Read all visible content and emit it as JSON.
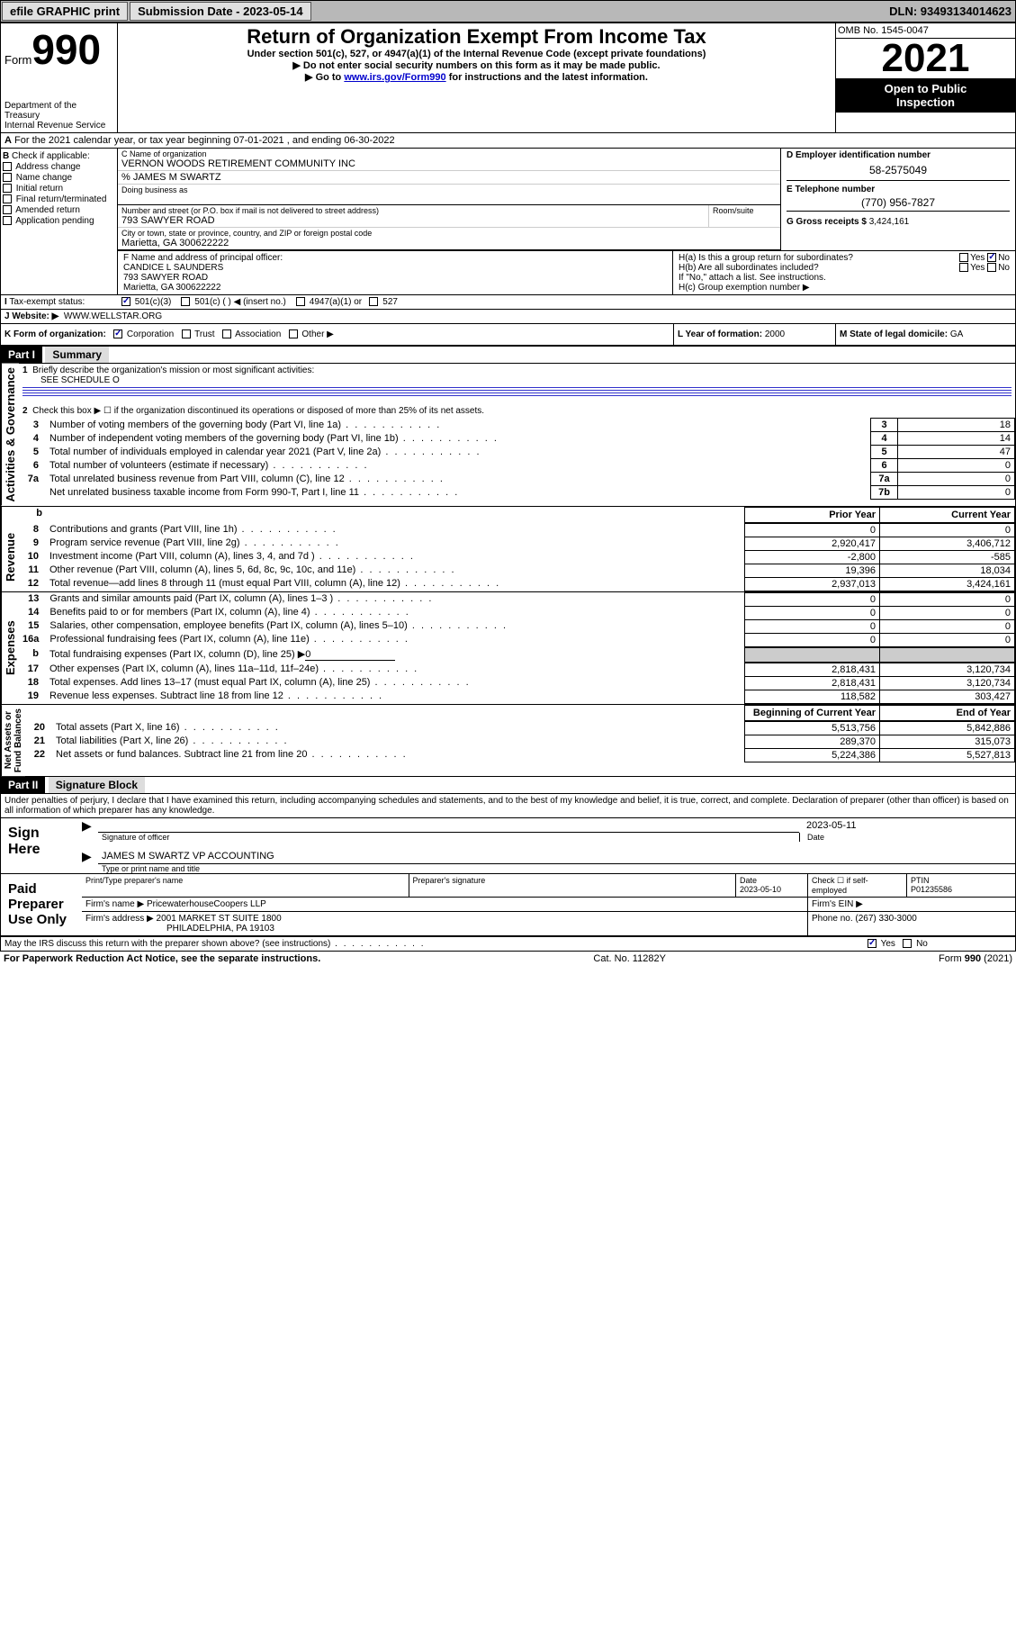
{
  "header": {
    "efile_label": "efile GRAPHIC print",
    "submission_label": "Submission Date - 2023-05-14",
    "dln_label": "DLN: 93493134014623"
  },
  "form_header": {
    "form_word": "Form",
    "form_num": "990",
    "title": "Return of Organization Exempt From Income Tax",
    "subtitle1": "Under section 501(c), 527, or 4947(a)(1) of the Internal Revenue Code (except private foundations)",
    "subtitle2": "▶ Do not enter social security numbers on this form as it may be made public.",
    "subtitle3_pre": "▶ Go to ",
    "subtitle3_link": "www.irs.gov/Form990",
    "subtitle3_post": " for instructions and the latest information.",
    "dept": "Department of the Treasury",
    "irs": "Internal Revenue Service",
    "omb": "OMB No. 1545-0047",
    "year": "2021",
    "open_pub1": "Open to Public",
    "open_pub2": "Inspection"
  },
  "section_a": "For the 2021 calendar year, or tax year beginning 07-01-2021  , and ending 06-30-2022",
  "section_b": {
    "label": "Check if applicable:",
    "opts": [
      "Address change",
      "Name change",
      "Initial return",
      "Final return/terminated",
      "Amended return",
      "Application pending"
    ]
  },
  "section_c": {
    "name_label": "C Name of organization",
    "name": "VERNON WOODS RETIREMENT COMMUNITY INC",
    "care_of": "% JAMES M SWARTZ",
    "dba_label": "Doing business as",
    "addr_label": "Number and street (or P.O. box if mail is not delivered to street address)",
    "room_label": "Room/suite",
    "addr": "793 SAWYER ROAD",
    "city_label": "City or town, state or province, country, and ZIP or foreign postal code",
    "city": "Marietta, GA  300622222"
  },
  "section_d": {
    "label": "D Employer identification number",
    "val": "58-2575049"
  },
  "section_e": {
    "label": "E Telephone number",
    "val": "(770) 956-7827"
  },
  "section_g": {
    "label": "G Gross receipts $",
    "val": "3,424,161"
  },
  "section_f": {
    "label": "F  Name and address of principal officer:",
    "name": "CANDICE L SAUNDERS",
    "addr1": "793 SAWYER ROAD",
    "addr2": "Marietta, GA  300622222"
  },
  "section_h": {
    "ha": "H(a)  Is this a group return for subordinates?",
    "hb": "H(b)  Are all subordinates included?",
    "hb_note": "If \"No,\" attach a list. See instructions.",
    "hc": "H(c)  Group exemption number ▶",
    "yes": "Yes",
    "no": "No"
  },
  "section_i": {
    "label": "Tax-exempt status:",
    "o1": "501(c)(3)",
    "o2": "501(c) (    ) ◀ (insert no.)",
    "o3": "4947(a)(1) or",
    "o4": "527"
  },
  "section_j": {
    "label": "Website: ▶",
    "val": "WWW.WELLSTAR.ORG"
  },
  "section_k": {
    "label": "K Form of organization:",
    "o1": "Corporation",
    "o2": "Trust",
    "o3": "Association",
    "o4": "Other ▶"
  },
  "section_l": {
    "label": "L Year of formation:",
    "val": "2000"
  },
  "section_m": {
    "label": "M State of legal domicile:",
    "val": "GA"
  },
  "part1": {
    "hdr": "Part I",
    "title": "Summary",
    "side_label": "Activities & Governance",
    "q1": "Briefly describe the organization's mission or most significant activities:",
    "q1v": "SEE SCHEDULE O",
    "q2": "Check this box ▶ ☐  if the organization discontinued its operations or disposed of more than 25% of its net assets.",
    "rows_a": [
      {
        "n": "3",
        "t": "Number of voting members of the governing body (Part VI, line 1a)",
        "r": "3",
        "v": "18"
      },
      {
        "n": "4",
        "t": "Number of independent voting members of the governing body (Part VI, line 1b)",
        "r": "4",
        "v": "14"
      },
      {
        "n": "5",
        "t": "Total number of individuals employed in calendar year 2021 (Part V, line 2a)",
        "r": "5",
        "v": "47"
      },
      {
        "n": "6",
        "t": "Total number of volunteers (estimate if necessary)",
        "r": "6",
        "v": "0"
      },
      {
        "n": "7a",
        "t": "Total unrelated business revenue from Part VIII, column (C), line 12",
        "r": "7a",
        "v": "0"
      },
      {
        "n": "",
        "t": "Net unrelated business taxable income from Form 990-T, Part I, line 11",
        "r": "7b",
        "v": "0"
      }
    ],
    "prior_hdr": "Prior Year",
    "curr_hdr": "Current Year",
    "side_rev": "Revenue",
    "rows_rev": [
      {
        "n": "8",
        "t": "Contributions and grants (Part VIII, line 1h)",
        "p": "0",
        "c": "0"
      },
      {
        "n": "9",
        "t": "Program service revenue (Part VIII, line 2g)",
        "p": "2,920,417",
        "c": "3,406,712"
      },
      {
        "n": "10",
        "t": "Investment income (Part VIII, column (A), lines 3, 4, and 7d )",
        "p": "-2,800",
        "c": "-585"
      },
      {
        "n": "11",
        "t": "Other revenue (Part VIII, column (A), lines 5, 6d, 8c, 9c, 10c, and 11e)",
        "p": "19,396",
        "c": "18,034"
      },
      {
        "n": "12",
        "t": "Total revenue—add lines 8 through 11 (must equal Part VIII, column (A), line 12)",
        "p": "2,937,013",
        "c": "3,424,161"
      }
    ],
    "side_exp": "Expenses",
    "rows_exp": [
      {
        "n": "13",
        "t": "Grants and similar amounts paid (Part IX, column (A), lines 1–3 )",
        "p": "0",
        "c": "0"
      },
      {
        "n": "14",
        "t": "Benefits paid to or for members (Part IX, column (A), line 4)",
        "p": "0",
        "c": "0"
      },
      {
        "n": "15",
        "t": "Salaries, other compensation, employee benefits (Part IX, column (A), lines 5–10)",
        "p": "0",
        "c": "0"
      },
      {
        "n": "16a",
        "t": "Professional fundraising fees (Part IX, column (A), line 11e)",
        "p": "0",
        "c": "0"
      }
    ],
    "row_16b": {
      "n": "b",
      "t": "Total fundraising expenses (Part IX, column (D), line 25) ▶",
      "v": "0"
    },
    "rows_exp2": [
      {
        "n": "17",
        "t": "Other expenses (Part IX, column (A), lines 11a–11d, 11f–24e)",
        "p": "2,818,431",
        "c": "3,120,734"
      },
      {
        "n": "18",
        "t": "Total expenses. Add lines 13–17 (must equal Part IX, column (A), line 25)",
        "p": "2,818,431",
        "c": "3,120,734"
      },
      {
        "n": "19",
        "t": "Revenue less expenses. Subtract line 18 from line 12",
        "p": "118,582",
        "c": "303,427"
      }
    ],
    "side_net": "Net Assets or\nFund Balances",
    "begin_hdr": "Beginning of Current Year",
    "end_hdr": "End of Year",
    "rows_net": [
      {
        "n": "20",
        "t": "Total assets (Part X, line 16)",
        "p": "5,513,756",
        "c": "5,842,886"
      },
      {
        "n": "21",
        "t": "Total liabilities (Part X, line 26)",
        "p": "289,370",
        "c": "315,073"
      },
      {
        "n": "22",
        "t": "Net assets or fund balances. Subtract line 21 from line 20",
        "p": "5,224,386",
        "c": "5,527,813"
      }
    ]
  },
  "part2": {
    "hdr": "Part II",
    "title": "Signature Block",
    "decl": "Under penalties of perjury, I declare that I have examined this return, including accompanying schedules and statements, and to the best of my knowledge and belief, it is true, correct, and complete. Declaration of preparer (other than officer) is based on all information of which preparer has any knowledge.",
    "sign_here": "Sign Here",
    "sig_officer": "Signature of officer",
    "sig_date": "2023-05-11",
    "date_lbl": "Date",
    "officer_name": "JAMES M SWARTZ  VP ACCOUNTING",
    "type_name": "Type or print name and title",
    "paid_prep": "Paid Preparer Use Only",
    "col1": "Print/Type preparer's name",
    "col2": "Preparer's signature",
    "col3": "Date",
    "prep_date": "2023-05-10",
    "check_self": "Check ☐ if self-employed",
    "ptin_lbl": "PTIN",
    "ptin": "P01235586",
    "firm_name_lbl": "Firm's name    ▶",
    "firm_name": "PricewaterhouseCoopers LLP",
    "firm_ein_lbl": "Firm's EIN ▶",
    "firm_addr_lbl": "Firm's address ▶",
    "firm_addr1": "2001 MARKET ST SUITE 1800",
    "firm_addr2": "PHILADELPHIA, PA  19103",
    "phone_lbl": "Phone no.",
    "phone": "(267) 330-3000",
    "may_irs": "May the IRS discuss this return with the preparer shown above? (see instructions)",
    "yes": "Yes",
    "no": "No"
  },
  "footer": {
    "paperwork": "For Paperwork Reduction Act Notice, see the separate instructions.",
    "cat": "Cat. No. 11282Y",
    "form": "Form 990 (2021)"
  }
}
